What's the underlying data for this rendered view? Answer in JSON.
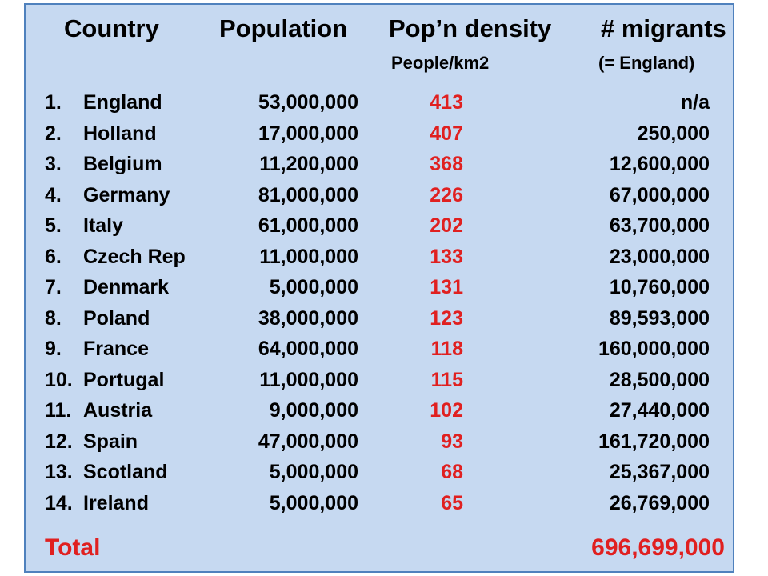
{
  "headers": {
    "country": "Country",
    "population": "Population",
    "density": "Pop’n density",
    "density_unit": "People/km2",
    "migrants": "# migrants",
    "migrants_note": "(= England)"
  },
  "rows": [
    {
      "num": "1.",
      "country": "England",
      "population": "53,000,000",
      "density": "413",
      "migrants": "n/a"
    },
    {
      "num": "2.",
      "country": "Holland",
      "population": "17,000,000",
      "density": "407",
      "migrants": "250,000"
    },
    {
      "num": "3.",
      "country": "Belgium",
      "population": "11,200,000",
      "density": "368",
      "migrants": "12,600,000"
    },
    {
      "num": "4.",
      "country": "Germany",
      "population": "81,000,000",
      "density": "226",
      "migrants": "67,000,000"
    },
    {
      "num": "5.",
      "country": "Italy",
      "population": "61,000,000",
      "density": "202",
      "migrants": "63,700,000"
    },
    {
      "num": "6.",
      "country": "Czech Rep",
      "population": "11,000,000",
      "density": "133",
      "migrants": "23,000,000"
    },
    {
      "num": "7.",
      "country": "Denmark",
      "population": "5,000,000",
      "density": "131",
      "migrants": "10,760,000"
    },
    {
      "num": "8.",
      "country": "Poland",
      "population": "38,000,000",
      "density": "123",
      "migrants": "89,593,000"
    },
    {
      "num": "9.",
      "country": "France",
      "population": "64,000,000",
      "density": "118",
      "migrants": "160,000,000"
    },
    {
      "num": "10.",
      "country": "Portugal",
      "population": "11,000,000",
      "density": "115",
      "migrants": "28,500,000"
    },
    {
      "num": "11.",
      "country": "Austria",
      "population": "9,000,000",
      "density": "102",
      "migrants": "27,440,000"
    },
    {
      "num": "12.",
      "country": "Spain",
      "population": "47,000,000",
      "density": "93",
      "migrants": "161,720,000"
    },
    {
      "num": "13.",
      "country": "Scotland",
      "population": "5,000,000",
      "density": "68",
      "migrants": "25,367,000"
    },
    {
      "num": "14.",
      "country": "Ireland",
      "population": "5,000,000",
      "density": "65",
      "migrants": "26,769,000"
    }
  ],
  "total": {
    "label": "Total",
    "value": "696,699,000"
  },
  "colors": {
    "background": "#c6d9f1",
    "border": "#4f81bd",
    "highlight": "#e02020"
  }
}
